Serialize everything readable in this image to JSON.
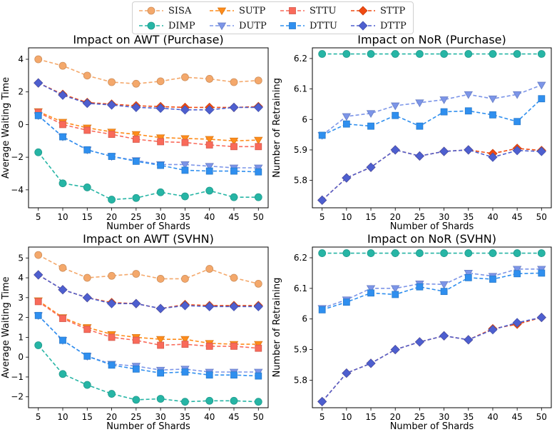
{
  "legend": [
    {
      "key": "SISA",
      "label": "SISA",
      "color": "#f4a86b",
      "marker": "circle"
    },
    {
      "key": "SUTP",
      "label": "SUTP",
      "color": "#ff8c1a",
      "marker": "triangle-down"
    },
    {
      "key": "STTU",
      "label": "STTU",
      "color": "#f96a5a",
      "marker": "square"
    },
    {
      "key": "STTP",
      "label": "STTP",
      "color": "#f04a12",
      "marker": "diamond"
    },
    {
      "key": "DIMP",
      "label": "DIMP",
      "color": "#26b5a5",
      "marker": "circle"
    },
    {
      "key": "DUTP",
      "label": "DUTP",
      "color": "#7c95e8",
      "marker": "triangle-down"
    },
    {
      "key": "DTTU",
      "label": "DTTU",
      "color": "#2f8fef",
      "marker": "square"
    },
    {
      "key": "DTTP",
      "label": "DTTP",
      "color": "#4e5fcf",
      "marker": "diamond"
    }
  ],
  "chart_data": [
    {
      "type": "line",
      "title": "Impact on AWT (Purchase)",
      "xlabel": "Number of Shards",
      "ylabel": "Average Waiting Time",
      "x": [
        5,
        10,
        15,
        20,
        25,
        30,
        35,
        40,
        45,
        50
      ],
      "ylim": [
        -5.1,
        4.7
      ],
      "yticks": [
        -4,
        -2,
        0,
        2,
        4
      ],
      "series": [
        {
          "name": "SISA",
          "values": [
            4.0,
            3.6,
            3.0,
            2.6,
            2.5,
            2.65,
            2.9,
            2.8,
            2.6,
            2.7
          ]
        },
        {
          "name": "SUTP",
          "values": [
            0.8,
            0.15,
            -0.2,
            -0.45,
            -0.6,
            -0.8,
            -0.85,
            -0.9,
            -1.0,
            -0.95
          ]
        },
        {
          "name": "STTU",
          "values": [
            0.75,
            0.0,
            -0.35,
            -0.6,
            -0.9,
            -1.05,
            -1.1,
            -1.25,
            -1.35,
            -1.35
          ]
        },
        {
          "name": "STTP",
          "values": [
            2.55,
            1.85,
            1.35,
            1.25,
            1.15,
            1.1,
            1.05,
            1.05,
            1.05,
            1.1
          ]
        },
        {
          "name": "DIMP",
          "values": [
            -1.7,
            -3.6,
            -3.85,
            -4.6,
            -4.5,
            -4.15,
            -4.4,
            -4.05,
            -4.45,
            -4.45
          ]
        },
        {
          "name": "DUTP",
          "values": [
            0.55,
            -0.75,
            -1.55,
            -1.95,
            -2.2,
            -2.45,
            -2.45,
            -2.55,
            -2.65,
            -2.65
          ]
        },
        {
          "name": "DTTU",
          "values": [
            0.55,
            -0.75,
            -1.55,
            -1.95,
            -2.25,
            -2.5,
            -2.8,
            -2.85,
            -2.85,
            -2.9
          ]
        },
        {
          "name": "DTTP",
          "values": [
            2.55,
            1.8,
            1.3,
            1.2,
            1.05,
            1.0,
            0.9,
            0.9,
            1.05,
            1.05
          ]
        }
      ]
    },
    {
      "type": "line",
      "title": "Impact on NoR (Purchase)",
      "xlabel": "Number of Shards",
      "ylabel": "Number of Retraining",
      "x": [
        5,
        10,
        15,
        20,
        25,
        30,
        35,
        40,
        45,
        50
      ],
      "ylim": [
        5.71,
        6.235
      ],
      "yticks": [
        5.8,
        5.9,
        6.0,
        6.1,
        6.2
      ],
      "series": [
        {
          "name": "DIMP",
          "values": [
            6.215,
            6.215,
            6.215,
            6.215,
            6.215,
            6.215,
            6.215,
            6.215,
            6.215,
            6.215
          ]
        },
        {
          "name": "DUTP",
          "values": [
            5.948,
            6.01,
            6.02,
            6.045,
            6.055,
            6.065,
            6.082,
            6.068,
            6.082,
            6.113
          ]
        },
        {
          "name": "DTTU",
          "values": [
            5.948,
            5.985,
            5.978,
            6.013,
            5.978,
            6.025,
            6.028,
            6.015,
            5.993,
            6.068
          ]
        },
        {
          "name": "STTP",
          "values": [
            5.735,
            5.808,
            5.843,
            5.9,
            5.88,
            5.895,
            5.9,
            5.888,
            5.905,
            5.898
          ]
        },
        {
          "name": "DTTP",
          "values": [
            5.735,
            5.808,
            5.843,
            5.9,
            5.88,
            5.895,
            5.9,
            5.876,
            5.898,
            5.895
          ]
        }
      ]
    },
    {
      "type": "line",
      "title": "Impact on AWT (SVHN)",
      "xlabel": "Number of Shards",
      "ylabel": "Average Waiting Time",
      "x": [
        5,
        10,
        15,
        20,
        25,
        30,
        35,
        40,
        45,
        50
      ],
      "ylim": [
        -2.55,
        5.55
      ],
      "yticks": [
        -2,
        -1,
        0,
        1,
        2,
        3,
        4,
        5
      ],
      "series": [
        {
          "name": "SISA",
          "values": [
            5.15,
            4.5,
            4.0,
            4.1,
            4.2,
            3.95,
            3.95,
            4.45,
            4.0,
            3.7
          ]
        },
        {
          "name": "SUTP",
          "values": [
            2.85,
            2.0,
            1.5,
            1.15,
            1.0,
            0.9,
            0.9,
            0.7,
            0.65,
            0.65
          ]
        },
        {
          "name": "STTU",
          "values": [
            2.8,
            1.95,
            1.4,
            1.0,
            0.85,
            0.6,
            0.65,
            0.55,
            0.55,
            0.45
          ]
        },
        {
          "name": "STTP",
          "values": [
            4.15,
            3.4,
            3.0,
            2.75,
            2.7,
            2.45,
            2.65,
            2.6,
            2.6,
            2.6
          ]
        },
        {
          "name": "DIMP",
          "values": [
            0.6,
            -0.85,
            -1.4,
            -1.85,
            -2.15,
            -2.1,
            -2.25,
            -2.2,
            -2.2,
            -2.25
          ]
        },
        {
          "name": "DUTP",
          "values": [
            2.1,
            0.85,
            0.05,
            -0.35,
            -0.45,
            -0.65,
            -0.6,
            -0.75,
            -0.75,
            -0.75
          ]
        },
        {
          "name": "DTTU",
          "values": [
            2.1,
            0.85,
            0.05,
            -0.4,
            -0.6,
            -0.8,
            -0.75,
            -0.9,
            -0.9,
            -0.95
          ]
        },
        {
          "name": "DTTP",
          "values": [
            4.15,
            3.4,
            3.0,
            2.7,
            2.7,
            2.45,
            2.6,
            2.55,
            2.55,
            2.55
          ]
        }
      ]
    },
    {
      "type": "line",
      "title": "Impact on NoR (SVHN)",
      "xlabel": "Number of Shards",
      "ylabel": "Number of Retraining",
      "x": [
        5,
        10,
        15,
        20,
        25,
        30,
        35,
        40,
        45,
        50
      ],
      "ylim": [
        5.71,
        6.235
      ],
      "yticks": [
        5.8,
        5.9,
        6.0,
        6.1,
        6.2
      ],
      "series": [
        {
          "name": "DIMP",
          "values": [
            6.215,
            6.215,
            6.215,
            6.215,
            6.215,
            6.215,
            6.215,
            6.215,
            6.215,
            6.215
          ]
        },
        {
          "name": "DUTP",
          "values": [
            6.035,
            6.063,
            6.1,
            6.1,
            6.115,
            6.113,
            6.15,
            6.14,
            6.163,
            6.163
          ]
        },
        {
          "name": "DTTU",
          "values": [
            6.03,
            6.055,
            6.085,
            6.08,
            6.105,
            6.09,
            6.135,
            6.13,
            6.148,
            6.15
          ]
        },
        {
          "name": "STTP",
          "values": [
            5.73,
            5.823,
            5.855,
            5.9,
            5.925,
            5.945,
            5.932,
            5.968,
            5.983,
            6.005
          ]
        },
        {
          "name": "DTTP",
          "values": [
            5.73,
            5.823,
            5.855,
            5.9,
            5.925,
            5.945,
            5.932,
            5.965,
            5.988,
            6.005
          ]
        }
      ]
    }
  ]
}
